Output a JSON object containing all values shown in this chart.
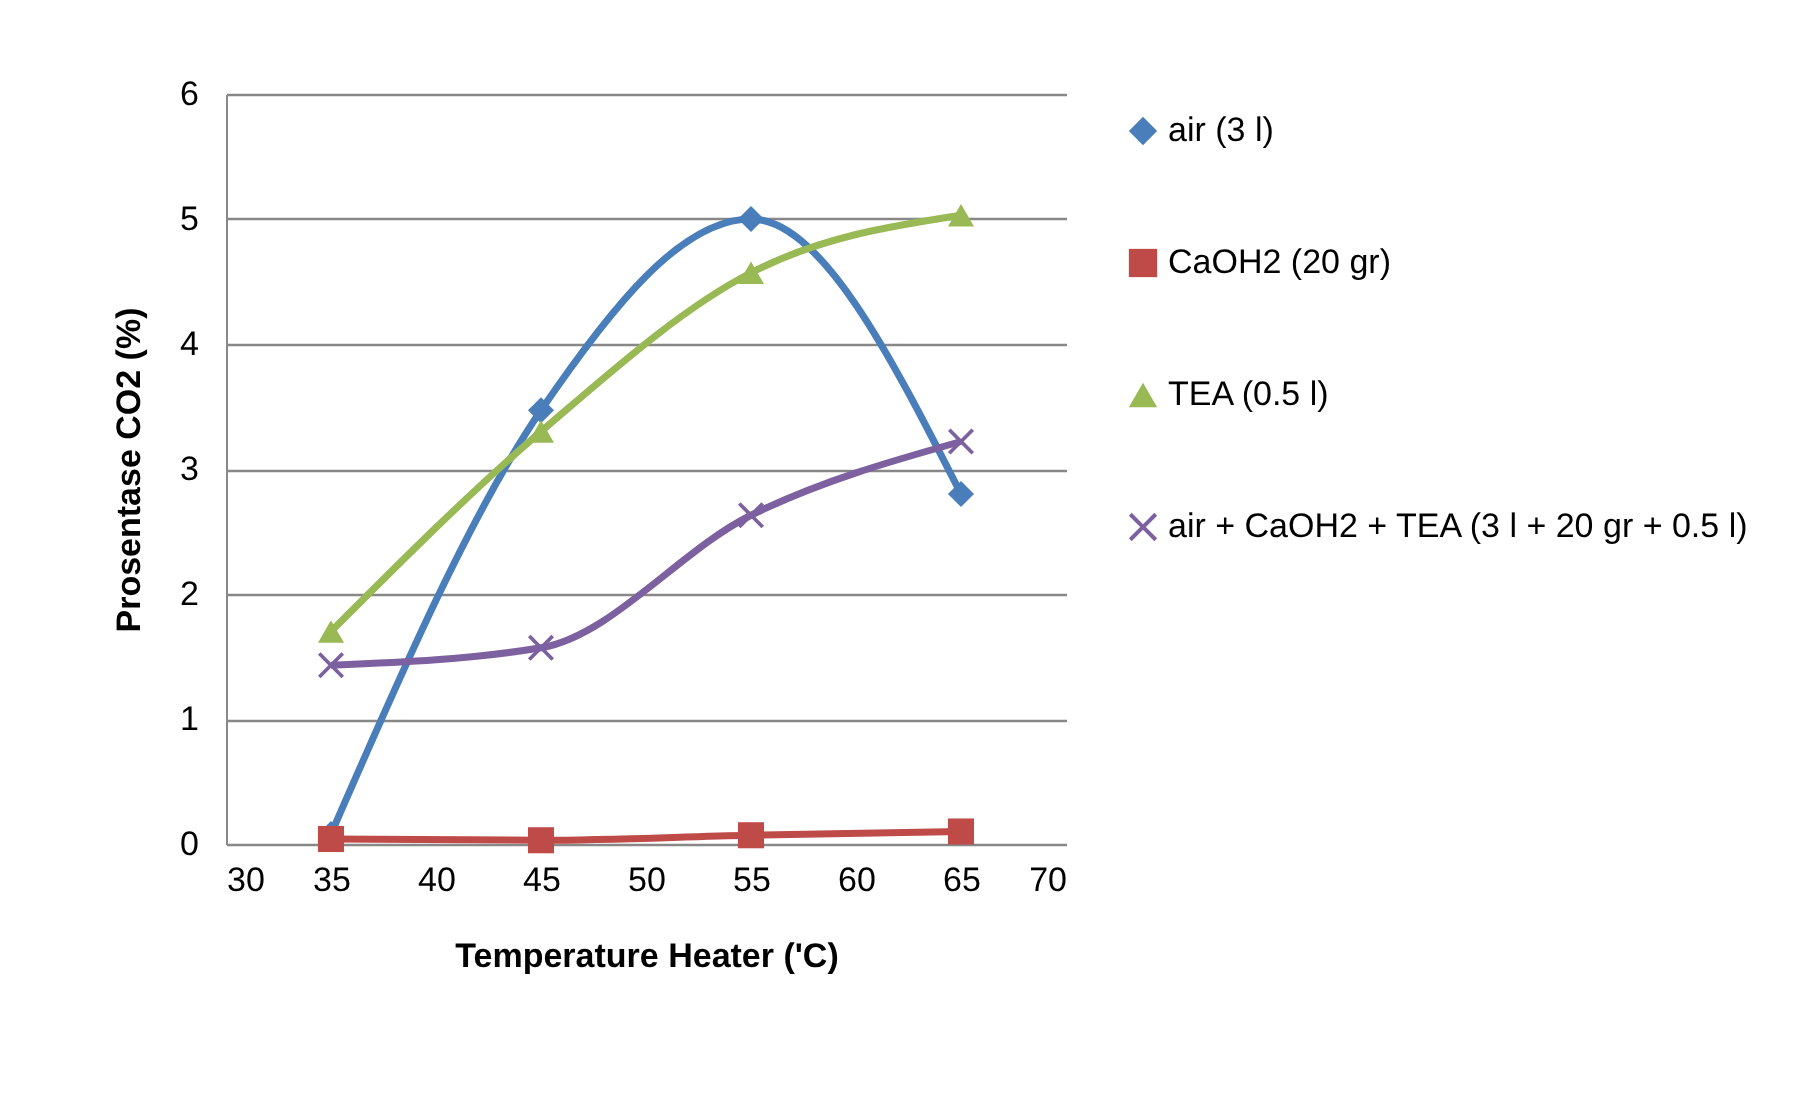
{
  "chart_data": {
    "type": "line",
    "xlabel": "Temperature Heater ('C)",
    "ylabel": "Prosentase CO2 (%)",
    "x": [
      35,
      45,
      55,
      65
    ],
    "series": [
      {
        "name": "air (3 l)",
        "color": "#4a7ebb",
        "marker": "diamond",
        "values": [
          0.08,
          3.47,
          5.0,
          2.8
        ]
      },
      {
        "name": "CaOH2 (20 gr)",
        "color": "#be4b48",
        "marker": "square",
        "values": [
          0.04,
          0.03,
          0.07,
          0.1
        ]
      },
      {
        "name": "TEA (0.5 l)",
        "color": "#98b954",
        "marker": "triangle",
        "values": [
          1.7,
          3.3,
          4.57,
          5.03
        ]
      },
      {
        "name": "air + CaOH2 + TEA (3 l + 20 gr + 0.5 l)",
        "color": "#7d60a0",
        "marker": "cross",
        "values": [
          1.43,
          1.57,
          2.63,
          3.22
        ]
      }
    ],
    "xlim": [
      30,
      70
    ],
    "xticks": [
      30,
      35,
      40,
      45,
      50,
      55,
      60,
      65,
      70
    ],
    "ylim": [
      0,
      6
    ],
    "yticks": [
      0,
      1,
      2,
      3,
      4,
      5,
      6
    ],
    "grid": "y",
    "legend": "right",
    "line_style": "solid"
  }
}
